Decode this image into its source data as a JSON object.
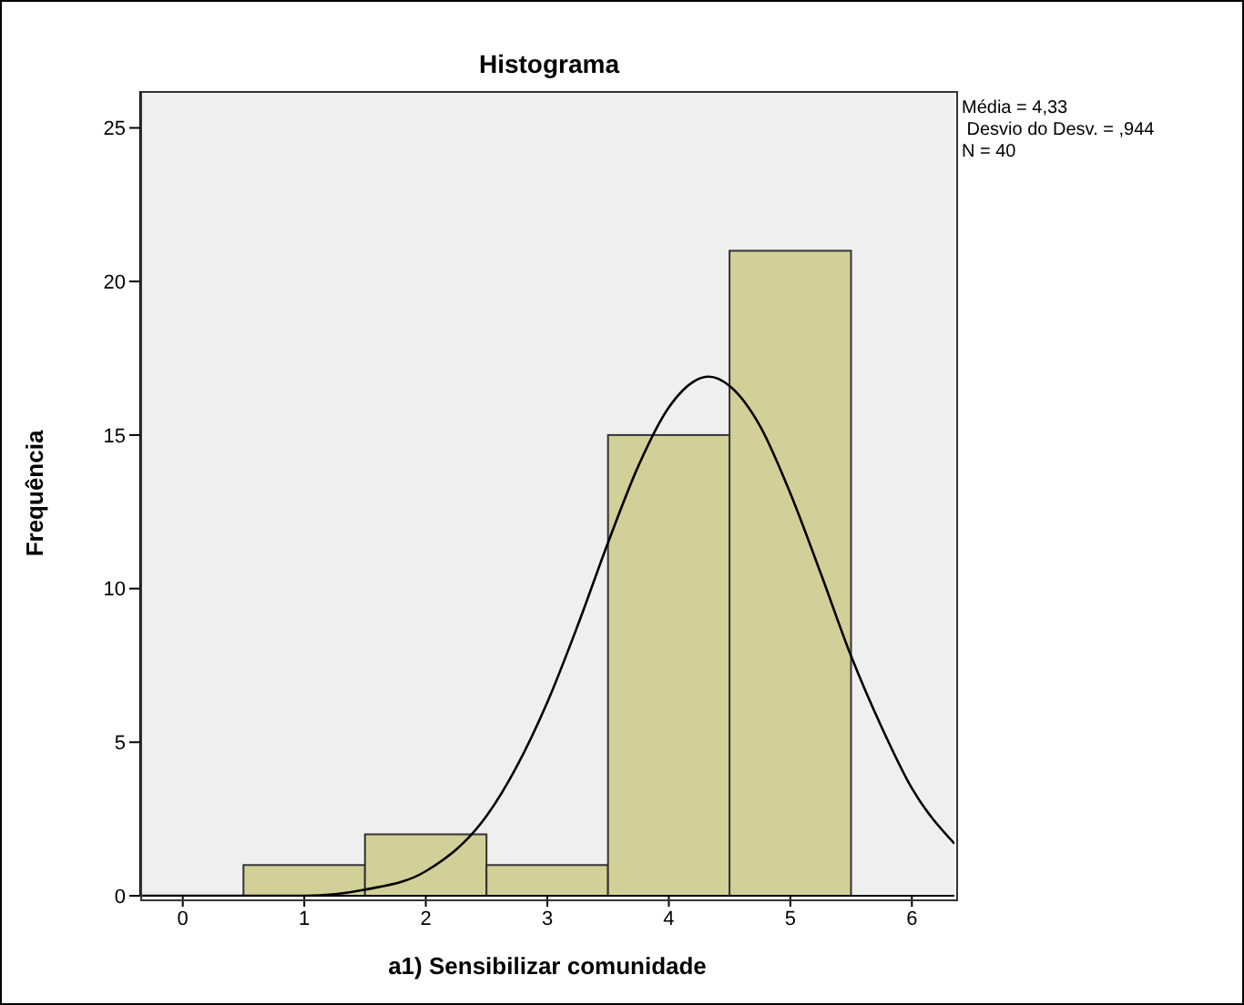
{
  "chart_data": {
    "type": "histogram",
    "title": "Histograma",
    "xlabel": "a1) Sensibilizar comunidade",
    "ylabel": "Frequência",
    "bins": [
      0.5,
      1.5,
      2.5,
      3.5,
      4.5,
      5.5
    ],
    "values": [
      1,
      2,
      1,
      15,
      21
    ],
    "color": "#d3cf98",
    "series": [
      {
        "type": "line",
        "color": "#000000",
        "x": [
          -0.35,
          0,
          0.5,
          1,
          1.5,
          2,
          2.5,
          3,
          3.25,
          3.5,
          3.75,
          4,
          4.33,
          4.5,
          4.75,
          5,
          5.25,
          5.5,
          5.75,
          6,
          6.35
        ],
        "values": [
          0,
          0,
          0,
          0,
          0.2,
          0.8,
          2.6,
          6.3,
          8.8,
          11.5,
          14,
          15.9,
          16.9,
          16.6,
          15.3,
          13.1,
          10.5,
          7.8,
          5.5,
          3.5,
          1.7
        ]
      }
    ],
    "xlim": [
      -0.35,
      6.35
    ],
    "xticks": [
      0,
      1,
      2,
      3,
      4,
      5,
      6
    ],
    "ylim": [
      0,
      26.2
    ],
    "yticks": [
      0,
      5,
      10,
      15,
      20,
      25
    ],
    "grid": false,
    "annotations": [
      "Média = 4,33",
      " Desvio do Desv. = ,944",
      "N = 40"
    ]
  }
}
